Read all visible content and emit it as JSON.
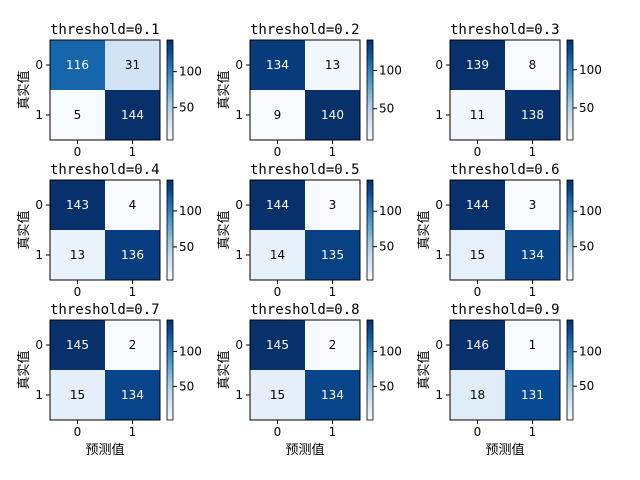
{
  "chart_data": [
    {
      "type": "heatmap",
      "title": "threshold=0.1",
      "xlabel": "",
      "ylabel": "真实值",
      "x_ticks": [
        "0",
        "1"
      ],
      "y_ticks": [
        "0",
        "1"
      ],
      "values": [
        [
          116,
          31
        ],
        [
          5,
          144
        ]
      ],
      "colormap": "Blues",
      "colorbar_ticks": [
        50,
        100
      ]
    },
    {
      "type": "heatmap",
      "title": "threshold=0.2",
      "xlabel": "",
      "ylabel": "真实值",
      "x_ticks": [
        "0",
        "1"
      ],
      "y_ticks": [
        "0",
        "1"
      ],
      "values": [
        [
          134,
          13
        ],
        [
          9,
          140
        ]
      ],
      "colormap": "Blues",
      "colorbar_ticks": [
        50,
        100
      ]
    },
    {
      "type": "heatmap",
      "title": "threshold=0.3",
      "xlabel": "",
      "ylabel": "",
      "x_ticks": [
        "0",
        "1"
      ],
      "y_ticks": [
        "0",
        "1"
      ],
      "values": [
        [
          139,
          8
        ],
        [
          11,
          138
        ]
      ],
      "colormap": "Blues",
      "colorbar_ticks": [
        50,
        100
      ]
    },
    {
      "type": "heatmap",
      "title": "threshold=0.4",
      "xlabel": "",
      "ylabel": "真实值",
      "x_ticks": [
        "0",
        "1"
      ],
      "y_ticks": [
        "0",
        "1"
      ],
      "values": [
        [
          143,
          4
        ],
        [
          13,
          136
        ]
      ],
      "colormap": "Blues",
      "colorbar_ticks": [
        50,
        100
      ]
    },
    {
      "type": "heatmap",
      "title": "threshold=0.5",
      "xlabel": "",
      "ylabel": "真实值",
      "x_ticks": [
        "0",
        "1"
      ],
      "y_ticks": [
        "0",
        "1"
      ],
      "values": [
        [
          144,
          3
        ],
        [
          14,
          135
        ]
      ],
      "colormap": "Blues",
      "colorbar_ticks": [
        50,
        100
      ]
    },
    {
      "type": "heatmap",
      "title": "threshold=0.6",
      "xlabel": "",
      "ylabel": "真实值",
      "x_ticks": [
        "0",
        "1"
      ],
      "y_ticks": [
        "0",
        "1"
      ],
      "values": [
        [
          144,
          3
        ],
        [
          15,
          134
        ]
      ],
      "colormap": "Blues",
      "colorbar_ticks": [
        50,
        100
      ]
    },
    {
      "type": "heatmap",
      "title": "threshold=0.7",
      "xlabel": "预测值",
      "ylabel": "真实值",
      "x_ticks": [
        "0",
        "1"
      ],
      "y_ticks": [
        "0",
        "1"
      ],
      "values": [
        [
          145,
          2
        ],
        [
          15,
          134
        ]
      ],
      "colormap": "Blues",
      "colorbar_ticks": [
        50,
        100
      ]
    },
    {
      "type": "heatmap",
      "title": "threshold=0.8",
      "xlabel": "预测值",
      "ylabel": "真实值",
      "x_ticks": [
        "0",
        "1"
      ],
      "y_ticks": [
        "0",
        "1"
      ],
      "values": [
        [
          145,
          2
        ],
        [
          15,
          134
        ]
      ],
      "colormap": "Blues",
      "colorbar_ticks": [
        50,
        100
      ]
    },
    {
      "type": "heatmap",
      "title": "threshold=0.9",
      "xlabel": "预测值",
      "ylabel": "真实值",
      "x_ticks": [
        "0",
        "1"
      ],
      "y_ticks": [
        "0",
        "1"
      ],
      "values": [
        [
          146,
          1
        ],
        [
          18,
          131
        ]
      ],
      "colormap": "Blues",
      "colorbar_ticks": [
        50,
        100
      ]
    }
  ]
}
